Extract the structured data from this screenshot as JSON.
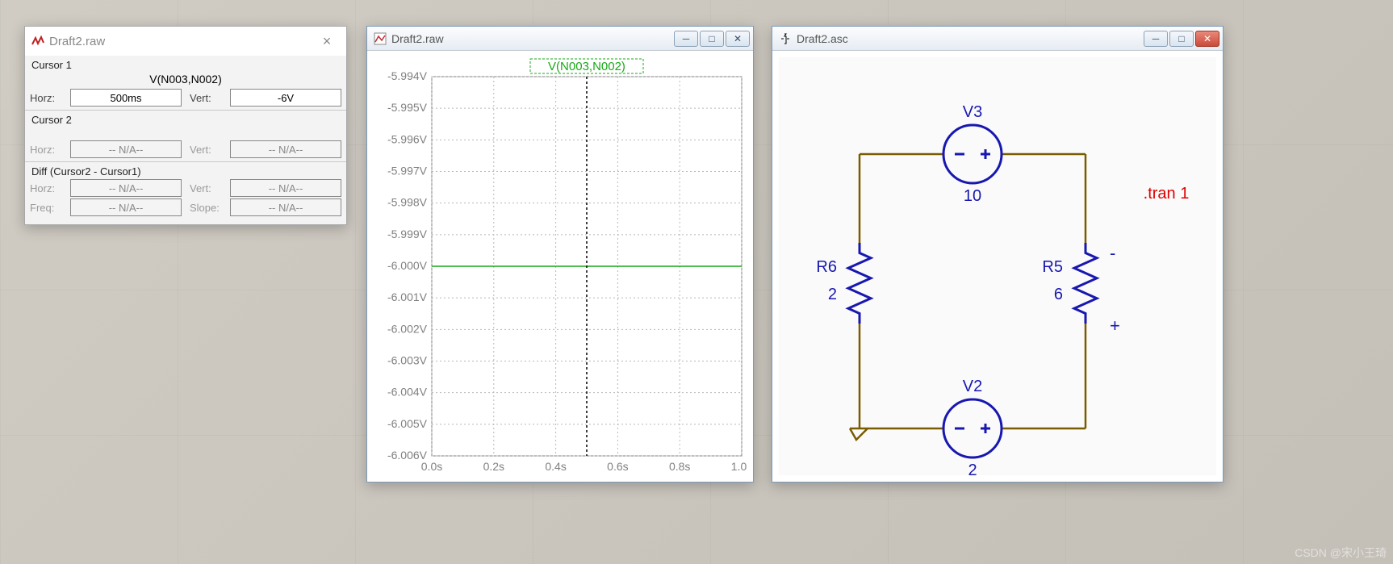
{
  "cursor_dialog": {
    "title": "Draft2.raw",
    "section1_label": "Cursor 1",
    "trace_name": "V(N003,N002)",
    "c1": {
      "horz_label": "Horz:",
      "horz_value": "500ms",
      "vert_label": "Vert:",
      "vert_value": "-6V"
    },
    "section2_label": "Cursor 2",
    "c2": {
      "horz_label": "Horz:",
      "horz_value": "-- N/A--",
      "vert_label": "Vert:",
      "vert_value": "-- N/A--"
    },
    "diff_label": "Diff (Cursor2 - Cursor1)",
    "diff": {
      "horz_label": "Horz:",
      "horz_value": "-- N/A--",
      "vert_label": "Vert:",
      "vert_value": "-- N/A--",
      "freq_label": "Freq:",
      "freq_value": "-- N/A--",
      "slope_label": "Slope:",
      "slope_value": "-- N/A--"
    },
    "icon_stroke": "#c02020"
  },
  "plot_window": {
    "title": "Draft2.raw",
    "trace_label": "V(N003,N002)",
    "trace_label_color": "#18a818",
    "trace_box_color": "#18a818",
    "background_color": "#ffffff",
    "grid_color": "#b8b8b8",
    "axis_text_color": "#808080",
    "trace_color": "#18a818",
    "cursor_color": "#000000",
    "x": {
      "min": 0.0,
      "max": 1.0,
      "ticks": [
        0.0,
        0.2,
        0.4,
        0.6,
        0.8,
        1.0
      ],
      "unit": "s",
      "tick_labels": [
        "0.0s",
        "0.2s",
        "0.4s",
        "0.6s",
        "0.8s",
        "1.0s"
      ]
    },
    "y": {
      "min": -6.006,
      "max": -5.994,
      "ticks": [
        -5.994,
        -5.995,
        -5.996,
        -5.997,
        -5.998,
        -5.999,
        -6.0,
        -6.001,
        -6.002,
        -6.003,
        -6.004,
        -6.005,
        -6.006
      ],
      "unit": "V",
      "tick_labels": [
        "-5.994V",
        "-5.995V",
        "-5.996V",
        "-5.997V",
        "-5.998V",
        "-5.999V",
        "-6.000V",
        "-6.001V",
        "-6.002V",
        "-6.003V",
        "-6.004V",
        "-6.005V",
        "-6.006V"
      ]
    },
    "series": [
      {
        "name": "V(N003,N002)",
        "color": "#18a818",
        "points": [
          [
            0.0,
            -6.0
          ],
          [
            1.0,
            -6.0
          ]
        ]
      }
    ],
    "cursor_x": 0.5
  },
  "schematic_window": {
    "title": "Draft2.asc",
    "background": "#fafafa",
    "wire_color": "#7a5c00",
    "component_color": "#1818b0",
    "text_color": "#1818b0",
    "directive_color": "#e00000",
    "directive_text": ".tran 1",
    "components": {
      "V3": {
        "label": "V3",
        "value": "10"
      },
      "V2": {
        "label": "V2",
        "value": "2"
      },
      "R6": {
        "label": "R6",
        "value": "2"
      },
      "R5": {
        "label": "R5",
        "value": "6"
      }
    },
    "polarity": {
      "minus": "-",
      "plus": "+"
    }
  },
  "watermark": "CSDN @宋小王琦"
}
